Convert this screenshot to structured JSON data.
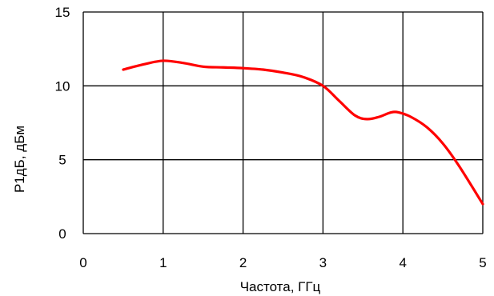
{
  "chart_data": {
    "type": "line",
    "title": "",
    "xlabel": "Частота, ГГц",
    "ylabel": "P1дБ, дБм",
    "xlim": [
      0,
      5
    ],
    "ylim": [
      0,
      15
    ],
    "xticks": [
      0,
      1,
      2,
      3,
      4,
      5
    ],
    "yticks": [
      0,
      5,
      10,
      15
    ],
    "grid": true,
    "line_color": "#ff0000",
    "series": [
      {
        "x": [
          0.5,
          0.75,
          1.0,
          1.25,
          1.5,
          1.75,
          2.0,
          2.25,
          2.5,
          2.75,
          3.0,
          3.2,
          3.4,
          3.55,
          3.7,
          3.85,
          3.95,
          4.1,
          4.3,
          4.5,
          4.7,
          5.0
        ],
        "y": [
          11.1,
          11.45,
          11.7,
          11.55,
          11.3,
          11.25,
          11.2,
          11.1,
          10.9,
          10.6,
          10.0,
          9.0,
          8.0,
          7.75,
          7.9,
          8.2,
          8.2,
          7.9,
          7.2,
          6.1,
          4.6,
          2.0
        ]
      }
    ]
  }
}
